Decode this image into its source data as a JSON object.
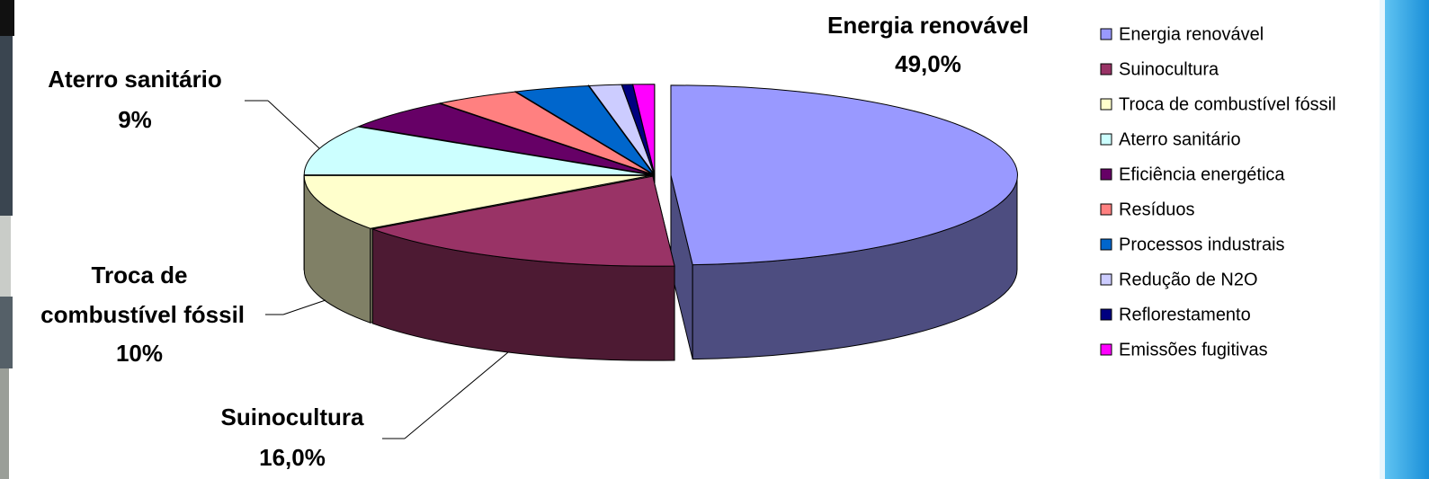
{
  "chart_data": {
    "type": "pie",
    "categories": [
      "Energia renovável",
      "Suinocultura",
      "Troca de combustível fóssil",
      "Aterro sanitário",
      "Eficiência energética",
      "Resíduos",
      "Processos industrais",
      "Redução de N2O",
      "Reflorestamento",
      "Emissões fugitivas"
    ],
    "values": [
      49,
      16,
      10,
      9,
      5.5,
      4,
      3.5,
      1.5,
      0.5,
      1
    ],
    "value_labels": [
      "49,0%",
      "16,0%",
      "10%",
      "9%",
      null,
      null,
      null,
      null,
      null,
      null
    ],
    "colors": [
      "#9999ff",
      "#993366",
      "#ffffcc",
      "#ccffff",
      "#660066",
      "#ff8080",
      "#0066cc",
      "#ccccff",
      "#000080",
      "#ff00ff"
    ],
    "legend": "right"
  }
}
